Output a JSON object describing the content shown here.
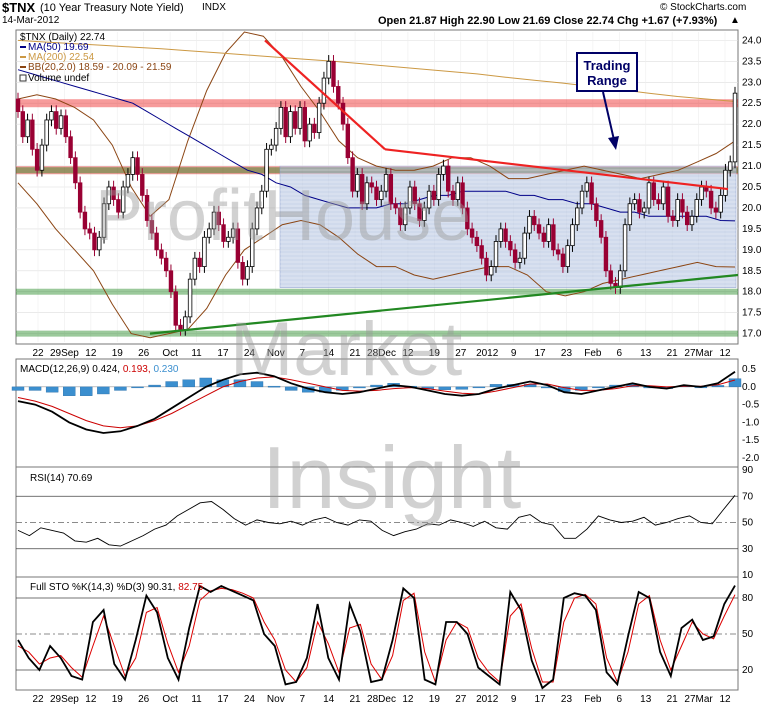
{
  "header": {
    "symbol": "$TNX",
    "name": "(10 Year Treasury Note Yield)",
    "exchange": "INDX",
    "date": "14-Mar-2012",
    "copyright": "© StockCharts.com",
    "ohlc": "Open 21.87  High 22.90  Low 21.69  Close 22.74  Chg +1.67 (+7.93%)",
    "up_arrow": "▲"
  },
  "legend": {
    "price": "$TNX (Daily) 22.74",
    "ma50": "MA(50) 19.69",
    "ma200": "MA(200) 22.54",
    "bb": "BB(20,2.0) 18.59 - 20.09 - 21.59",
    "volume": "Volume undef"
  },
  "annotation": {
    "line1": "Trading",
    "line2": "Range"
  },
  "watermark": {
    "line1": "ProfitHouse",
    "line2": "Market",
    "line3": "Insight"
  },
  "macd_label": {
    "name": "MACD(12,26,9)",
    "v1": "0.424,",
    "v2": "0.193,",
    "v3": "0.230"
  },
  "rsi_label": "RSI(14) 70.69",
  "sto_label": {
    "name": "Full STO %K(14,3) %D(3)",
    "v1": "90.31,",
    "v2": "82.75"
  },
  "colors": {
    "up": "#000000",
    "down": "#990033",
    "ma50": "#000088",
    "ma200": "#cc9944",
    "bb": "#8b4513",
    "resist": "#ee2222",
    "support": "#228822",
    "range": "#aabbdd",
    "macd_hist": "#3b8fcf"
  },
  "chart_data": [
    {
      "type": "candlestick",
      "title": "$TNX (10 Year Treasury Note Yield)",
      "ylim": [
        16.8,
        24.2
      ],
      "y_ticks": [
        17.0,
        17.5,
        18.0,
        18.5,
        19.0,
        19.5,
        20.0,
        20.5,
        21.0,
        21.5,
        22.0,
        22.5,
        23.0,
        23.5,
        24.0
      ],
      "x_ticks": [
        "22",
        "29Sep",
        "12",
        "19",
        "26",
        "Oct",
        "11",
        "17",
        "24",
        "Nov",
        "7",
        "14",
        "21",
        "28Dec",
        "12",
        "19",
        "27",
        "2012",
        "9",
        "17",
        "23",
        "Feb",
        "6",
        "13",
        "21",
        "27Mar",
        "12"
      ],
      "close": [
        22.3,
        21.7,
        22.1,
        21.4,
        20.9,
        21.5,
        22.1,
        22.3,
        21.9,
        22.2,
        21.7,
        21.2,
        20.6,
        19.9,
        19.5,
        19.4,
        19.0,
        19.3,
        20.1,
        20.5,
        20.2,
        19.9,
        20.5,
        20.8,
        21.2,
        20.8,
        20.3,
        19.7,
        19.4,
        19.0,
        18.8,
        18.5,
        18.0,
        17.2,
        17.1,
        17.4,
        18.3,
        18.8,
        18.6,
        19.3,
        19.5,
        19.9,
        19.6,
        19.2,
        19.3,
        19.5,
        18.7,
        18.3,
        18.6,
        19.5,
        20.0,
        20.4,
        21.4,
        21.5,
        21.9,
        22.4,
        21.7,
        22.3,
        21.9,
        22.4,
        21.6,
        22.0,
        21.8,
        22.5,
        23.1,
        23.5,
        22.9,
        22.5,
        22.0,
        21.2,
        20.4,
        20.8,
        20.1,
        20.6,
        20.5,
        20.2,
        20.4,
        20.8,
        20.1,
        20.0,
        19.6,
        20.0,
        20.5,
        20.1,
        19.7,
        20.0,
        20.4,
        20.2,
        20.8,
        21.0,
        20.4,
        20.2,
        20.6,
        20.0,
        19.5,
        19.3,
        19.1,
        18.8,
        18.4,
        18.6,
        19.2,
        19.5,
        19.2,
        19.0,
        18.7,
        18.8,
        19.4,
        19.8,
        19.6,
        19.4,
        19.2,
        19.6,
        19.0,
        18.9,
        18.6,
        19.1,
        19.6,
        20.0,
        20.4,
        20.6,
        20.1,
        19.7,
        19.3,
        18.5,
        18.2,
        18.1,
        18.5,
        19.6,
        20.1,
        20.2,
        19.9,
        20.0,
        20.6,
        20.2,
        20.1,
        20.5,
        19.8,
        19.7,
        20.2,
        19.9,
        19.6,
        19.8,
        20.2,
        20.5,
        20.4,
        20.0,
        19.9,
        20.3,
        20.9,
        21.1,
        22.74
      ],
      "ma50": [
        23.3,
        23.2,
        23.1,
        23.0,
        22.9,
        22.8,
        22.7,
        22.6,
        22.5,
        22.3,
        22.1,
        21.9,
        21.7,
        21.5,
        21.3,
        21.1,
        20.9,
        20.8,
        20.6,
        20.5,
        20.3,
        20.2,
        20.1,
        20.0,
        20.0,
        20.0,
        20.1,
        20.1,
        20.2,
        20.3,
        20.3,
        20.4,
        20.4,
        20.4,
        20.4,
        20.3,
        20.3,
        20.2,
        20.2,
        20.1,
        20.1,
        20.0,
        19.9,
        19.9,
        19.8,
        19.8,
        19.8,
        19.8,
        19.8,
        19.7,
        19.69
      ],
      "ma200": [
        24.0,
        23.96,
        23.92,
        23.88,
        23.84,
        23.8,
        23.75,
        23.7,
        23.65,
        23.6,
        23.55,
        23.5,
        23.44,
        23.38,
        23.32,
        23.26,
        23.2,
        23.12,
        23.05,
        22.98,
        22.9,
        22.82,
        22.74,
        22.66,
        22.6,
        22.54
      ],
      "bb_upper": [
        22.6,
        22.7,
        22.6,
        22.4,
        22.1,
        21.5,
        20.5,
        19.8,
        20.2,
        21.6,
        22.8,
        23.7,
        24.2,
        24.1,
        23.6,
        22.9,
        22.3,
        21.6,
        21.2,
        21.0,
        20.9,
        20.9,
        21.0,
        21.2,
        21.2,
        21.0,
        20.7,
        20.7,
        20.8,
        20.9,
        21.0,
        20.9,
        20.8,
        20.7,
        20.8,
        20.9,
        21.1,
        21.3,
        21.6
      ],
      "bb_lower": [
        20.6,
        20.1,
        19.5,
        19.0,
        18.5,
        17.7,
        17.0,
        16.9,
        17.0,
        17.1,
        17.6,
        18.4,
        19.0,
        19.3,
        19.6,
        19.7,
        19.6,
        19.3,
        18.9,
        18.6,
        18.6,
        18.4,
        18.3,
        18.4,
        18.5,
        18.6,
        18.6,
        18.4,
        18.0,
        17.9,
        18.0,
        18.2,
        18.3,
        18.4,
        18.5,
        18.6,
        18.7,
        18.6,
        18.59
      ],
      "resistance_zones": [
        22.5,
        20.9
      ],
      "support_zones": [
        20.9,
        18.0,
        17.0
      ],
      "trendline_down": [
        [
          24.0,
          21.4
        ],
        [
          21.4,
          20.45
        ]
      ],
      "trendline_up": [
        17.0,
        18.4
      ],
      "trading_range": [
        18.1,
        21.0
      ],
      "series": [
        {
          "name": "$TNX (Daily)"
        },
        {
          "name": "MA(50)"
        },
        {
          "name": "MA(200)"
        },
        {
          "name": "BB(20,2.0)"
        }
      ]
    },
    {
      "type": "line",
      "title": "MACD(12,26,9)",
      "ylim": [
        -2.2,
        0.7
      ],
      "y_ticks": [
        0.5,
        0.0,
        -0.5,
        -1.0,
        -1.5,
        -2.0
      ],
      "macd": [
        -0.4,
        -0.5,
        -0.7,
        -1.0,
        -1.2,
        -1.3,
        -1.25,
        -1.1,
        -0.9,
        -0.6,
        -0.3,
        0.0,
        0.2,
        0.35,
        0.4,
        0.3,
        0.1,
        -0.05,
        -0.15,
        -0.2,
        -0.15,
        -0.05,
        0.05,
        0.0,
        -0.1,
        -0.2,
        -0.25,
        -0.2,
        -0.05,
        0.05,
        0.15,
        0.05,
        -0.15,
        -0.2,
        -0.1,
        0.0,
        0.1,
        0.0,
        -0.05,
        0.05,
        0.0,
        0.1,
        0.424
      ],
      "signal": [
        -0.3,
        -0.4,
        -0.55,
        -0.75,
        -0.95,
        -1.1,
        -1.15,
        -1.1,
        -0.95,
        -0.75,
        -0.5,
        -0.25,
        0.0,
        0.15,
        0.25,
        0.28,
        0.2,
        0.1,
        0.0,
        -0.1,
        -0.12,
        -0.1,
        -0.05,
        -0.02,
        -0.05,
        -0.12,
        -0.18,
        -0.2,
        -0.12,
        -0.02,
        0.08,
        0.08,
        -0.02,
        -0.1,
        -0.1,
        -0.05,
        0.03,
        0.03,
        0.0,
        0.02,
        0.02,
        0.06,
        0.193
      ]
    },
    {
      "type": "line",
      "title": "RSI(14)",
      "ylim": [
        10,
        90
      ],
      "y_ticks": [
        90,
        70,
        50,
        30,
        10
      ],
      "values": [
        44,
        40,
        46,
        44,
        42,
        36,
        35,
        38,
        33,
        32,
        36,
        40,
        45,
        48,
        55,
        60,
        65,
        66,
        60,
        53,
        48,
        52,
        50,
        49,
        51,
        48,
        52,
        54,
        50,
        48,
        52,
        51,
        44,
        40,
        43,
        45,
        49,
        48,
        52,
        50,
        47,
        51,
        46,
        45,
        54,
        56,
        50,
        48,
        38,
        38,
        45,
        55,
        52,
        50,
        51,
        54,
        48,
        50,
        53,
        55,
        50,
        49,
        60,
        70.69
      ]
    },
    {
      "type": "line",
      "title": "Full STO %K(14,3) %D(3)",
      "ylim": [
        5,
        95
      ],
      "y_ticks": [
        80,
        50,
        20
      ],
      "k": [
        45,
        30,
        20,
        40,
        30,
        15,
        12,
        60,
        70,
        25,
        12,
        45,
        82,
        68,
        30,
        12,
        55,
        90,
        85,
        90,
        86,
        82,
        78,
        50,
        40,
        8,
        10,
        30,
        75,
        30,
        12,
        75,
        52,
        10,
        12,
        45,
        88,
        80,
        12,
        8,
        60,
        60,
        50,
        22,
        15,
        8,
        85,
        70,
        28,
        5,
        12,
        80,
        84,
        82,
        70,
        18,
        8,
        48,
        85,
        80,
        35,
        15,
        55,
        62,
        45,
        48,
        75,
        90.31
      ],
      "d": [
        40,
        35,
        25,
        30,
        32,
        22,
        14,
        40,
        65,
        40,
        15,
        30,
        68,
        72,
        42,
        18,
        40,
        78,
        86,
        88,
        87,
        84,
        80,
        60,
        45,
        20,
        10,
        22,
        60,
        42,
        18,
        55,
        58,
        25,
        12,
        32,
        78,
        84,
        35,
        10,
        45,
        60,
        55,
        30,
        18,
        10,
        65,
        75,
        38,
        10,
        10,
        60,
        80,
        83,
        75,
        30,
        10,
        35,
        75,
        82,
        45,
        20,
        40,
        60,
        50,
        46,
        65,
        82.75
      ]
    }
  ]
}
